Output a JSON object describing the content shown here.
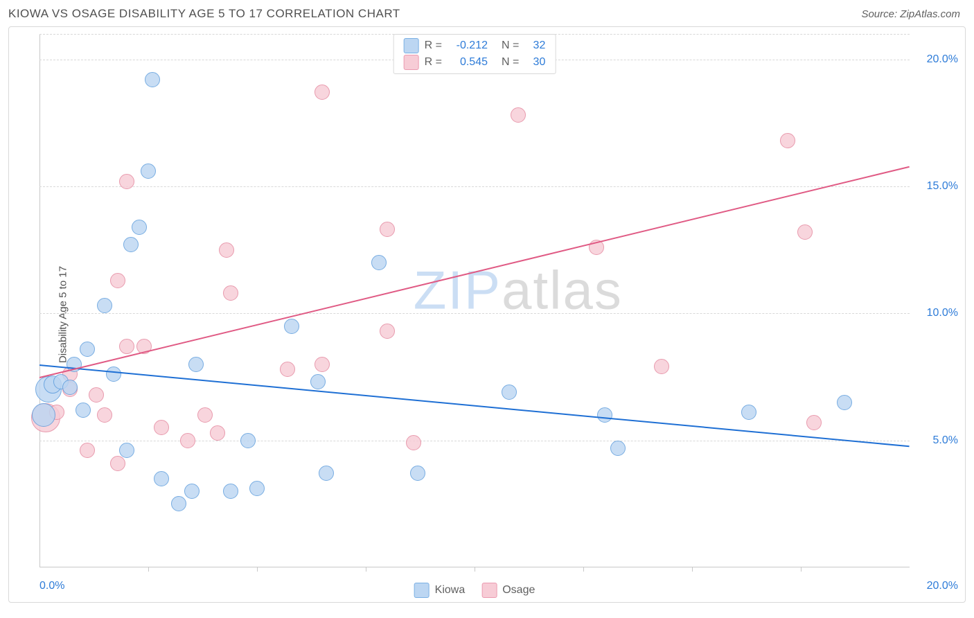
{
  "header": {
    "title": "KIOWA VS OSAGE DISABILITY AGE 5 TO 17 CORRELATION CHART",
    "source": "Source: ZipAtlas.com"
  },
  "chart": {
    "type": "scatter",
    "ylabel": "Disability Age 5 to 17",
    "background_color": "#ffffff",
    "grid_color": "#d8d8d8",
    "xlim": [
      0,
      20
    ],
    "ylim": [
      0,
      21
    ],
    "xtick_step": 2.5,
    "ytick_step": 5,
    "xtick_labels": {
      "0": "0.0%",
      "20": "20.0%"
    },
    "ytick_labels": {
      "5": "5.0%",
      "10": "10.0%",
      "15": "15.0%",
      "20": "20.0%"
    },
    "watermark": {
      "part1": "ZIP",
      "part2": "atlas"
    },
    "series": [
      {
        "name": "Kiowa",
        "fill": "#bcd6f2",
        "stroke": "#5a9bdc",
        "swatch_fill": "#bcd6f2",
        "swatch_stroke": "#7ab0e4",
        "marker_radius": 10,
        "line_color": "#1e6fd4",
        "line_width": 2.2,
        "trend": {
          "x1": 0,
          "y1": 8.0,
          "x2": 20,
          "y2": 4.8
        },
        "R": "-0.212",
        "N": "32",
        "points": [
          {
            "x": 0.2,
            "y": 7.0,
            "r": 18
          },
          {
            "x": 0.1,
            "y": 6.0,
            "r": 16
          },
          {
            "x": 0.3,
            "y": 7.2,
            "r": 12
          },
          {
            "x": 0.5,
            "y": 7.3,
            "r": 10
          },
          {
            "x": 0.7,
            "y": 7.1,
            "r": 10
          },
          {
            "x": 0.8,
            "y": 8.0,
            "r": 10
          },
          {
            "x": 1.0,
            "y": 6.2,
            "r": 10
          },
          {
            "x": 1.1,
            "y": 8.6,
            "r": 10
          },
          {
            "x": 1.5,
            "y": 10.3,
            "r": 10
          },
          {
            "x": 1.7,
            "y": 7.6,
            "r": 10
          },
          {
            "x": 2.0,
            "y": 4.6,
            "r": 10
          },
          {
            "x": 2.1,
            "y": 12.7,
            "r": 10
          },
          {
            "x": 2.3,
            "y": 13.4,
            "r": 10
          },
          {
            "x": 2.5,
            "y": 15.6,
            "r": 10
          },
          {
            "x": 2.6,
            "y": 19.2,
            "r": 10
          },
          {
            "x": 2.8,
            "y": 3.5,
            "r": 10
          },
          {
            "x": 3.2,
            "y": 2.5,
            "r": 10
          },
          {
            "x": 3.5,
            "y": 3.0,
            "r": 10
          },
          {
            "x": 3.6,
            "y": 8.0,
            "r": 10
          },
          {
            "x": 4.4,
            "y": 3.0,
            "r": 10
          },
          {
            "x": 4.8,
            "y": 5.0,
            "r": 10
          },
          {
            "x": 5.0,
            "y": 3.1,
            "r": 10
          },
          {
            "x": 5.8,
            "y": 9.5,
            "r": 10
          },
          {
            "x": 6.4,
            "y": 7.3,
            "r": 10
          },
          {
            "x": 6.6,
            "y": 3.7,
            "r": 10
          },
          {
            "x": 7.8,
            "y": 12.0,
            "r": 10
          },
          {
            "x": 8.7,
            "y": 3.7,
            "r": 10
          },
          {
            "x": 10.8,
            "y": 6.9,
            "r": 10
          },
          {
            "x": 13.0,
            "y": 6.0,
            "r": 10
          },
          {
            "x": 13.3,
            "y": 4.7,
            "r": 10
          },
          {
            "x": 16.3,
            "y": 6.1,
            "r": 10
          },
          {
            "x": 18.5,
            "y": 6.5,
            "r": 10
          }
        ]
      },
      {
        "name": "Osage",
        "fill": "#f7ccd6",
        "stroke": "#e4849c",
        "swatch_fill": "#f7ccd6",
        "swatch_stroke": "#eb9ab0",
        "marker_radius": 10,
        "line_color": "#e05a84",
        "line_width": 2.2,
        "trend": {
          "x1": 0,
          "y1": 7.5,
          "x2": 20,
          "y2": 15.8
        },
        "R": "0.545",
        "N": "30",
        "points": [
          {
            "x": 0.15,
            "y": 5.9,
            "r": 20
          },
          {
            "x": 0.4,
            "y": 6.1,
            "r": 10
          },
          {
            "x": 0.7,
            "y": 7.0,
            "r": 10
          },
          {
            "x": 0.7,
            "y": 7.6,
            "r": 10
          },
          {
            "x": 1.1,
            "y": 4.6,
            "r": 10
          },
          {
            "x": 1.3,
            "y": 6.8,
            "r": 10
          },
          {
            "x": 1.5,
            "y": 6.0,
            "r": 10
          },
          {
            "x": 1.8,
            "y": 11.3,
            "r": 10
          },
          {
            "x": 1.8,
            "y": 4.1,
            "r": 10
          },
          {
            "x": 2.0,
            "y": 8.7,
            "r": 10
          },
          {
            "x": 2.0,
            "y": 15.2,
            "r": 10
          },
          {
            "x": 2.4,
            "y": 8.7,
            "r": 10
          },
          {
            "x": 2.8,
            "y": 5.5,
            "r": 10
          },
          {
            "x": 3.4,
            "y": 5.0,
            "r": 10
          },
          {
            "x": 3.8,
            "y": 6.0,
            "r": 10
          },
          {
            "x": 4.1,
            "y": 5.3,
            "r": 10
          },
          {
            "x": 4.3,
            "y": 12.5,
            "r": 10
          },
          {
            "x": 4.4,
            "y": 10.8,
            "r": 10
          },
          {
            "x": 5.7,
            "y": 7.8,
            "r": 10
          },
          {
            "x": 6.5,
            "y": 8.0,
            "r": 10
          },
          {
            "x": 6.5,
            "y": 18.7,
            "r": 10
          },
          {
            "x": 8.0,
            "y": 9.3,
            "r": 10
          },
          {
            "x": 8.0,
            "y": 13.3,
            "r": 10
          },
          {
            "x": 8.6,
            "y": 4.9,
            "r": 10
          },
          {
            "x": 11.0,
            "y": 17.8,
            "r": 10
          },
          {
            "x": 12.8,
            "y": 12.6,
            "r": 10
          },
          {
            "x": 14.3,
            "y": 7.9,
            "r": 10
          },
          {
            "x": 17.2,
            "y": 16.8,
            "r": 10
          },
          {
            "x": 17.6,
            "y": 13.2,
            "r": 10
          },
          {
            "x": 17.8,
            "y": 5.7,
            "r": 10
          }
        ]
      }
    ],
    "legend_top": {
      "rows": [
        {
          "swatch": 0,
          "R_label": "R =",
          "N_label": "N ="
        },
        {
          "swatch": 1,
          "R_label": "R =",
          "N_label": "N ="
        }
      ]
    },
    "legend_bottom": {
      "items": [
        {
          "swatch": 0,
          "label": "Kiowa"
        },
        {
          "swatch": 1,
          "label": "Osage"
        }
      ]
    }
  }
}
